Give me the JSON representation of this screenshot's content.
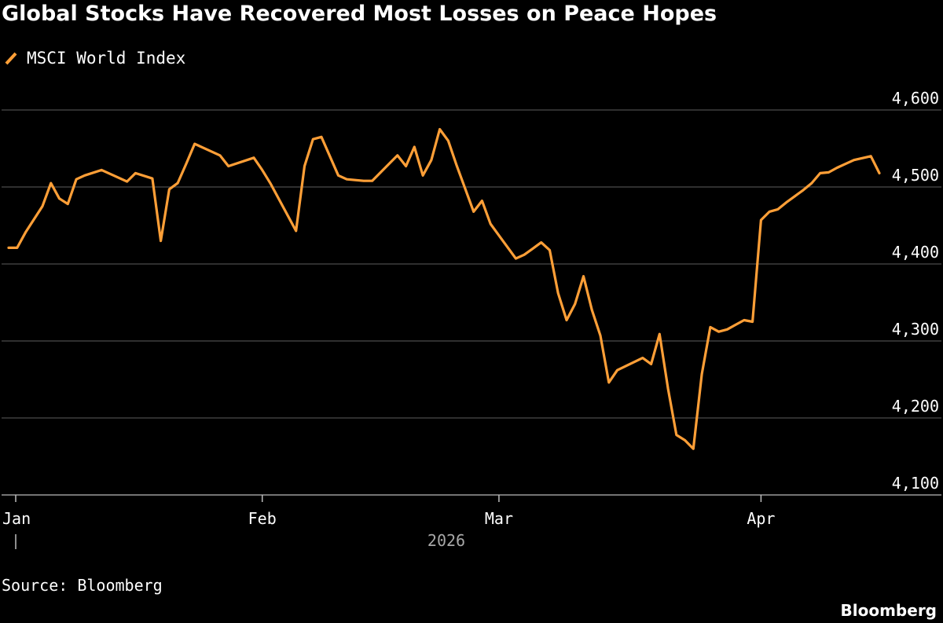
{
  "colors": {
    "background": "#000000",
    "line": "#ff9f37",
    "grid": "#5e5e5e",
    "text": "#ffffff",
    "muted": "#a8a8a8"
  },
  "chart_data": {
    "type": "line",
    "title": "Global Stocks Have Recovered Most Losses on Peace Hopes",
    "legend": [
      "MSCI World Index"
    ],
    "legend_position": "top-left",
    "xlabel": "",
    "ylabel": "",
    "x_ticks": [
      "Jan",
      "Feb",
      "Mar",
      "Apr"
    ],
    "x_year_label": "2026",
    "x_tick_days": [
      1,
      31,
      59,
      90
    ],
    "xlim": [
      1,
      104
    ],
    "y_ticks": [
      "4,600",
      "4,500",
      "4,400",
      "4,300",
      "4,200",
      "4,100"
    ],
    "y_tick_values": [
      4600,
      4500,
      4400,
      4300,
      4200,
      4100
    ],
    "ylim": [
      4100,
      4600
    ],
    "grid": true,
    "series": [
      {
        "name": "MSCI World Index",
        "x": [
          1,
          2,
          3,
          5,
          6,
          7,
          8,
          9,
          10,
          12,
          15,
          16,
          18,
          19,
          20,
          21,
          22,
          23,
          26,
          27,
          30,
          31,
          32,
          35,
          36,
          37,
          38,
          40,
          41,
          42,
          43,
          44,
          47,
          48,
          49,
          50,
          51,
          52,
          53,
          54,
          56,
          57,
          58,
          61,
          62,
          63,
          64,
          65,
          66,
          67,
          68,
          69,
          70,
          71,
          72,
          73,
          76,
          77,
          78,
          79,
          80,
          81,
          82,
          83,
          84,
          85,
          86,
          87,
          88,
          89,
          90,
          91,
          92,
          93,
          94,
          95,
          96,
          97,
          98,
          99,
          100,
          101,
          103,
          104
        ],
        "values": [
          4421,
          4421,
          4441,
          4475,
          4505,
          4485,
          4478,
          4510,
          4515,
          4522,
          4507,
          4518,
          4511,
          4430,
          4497,
          4505,
          4530,
          4556,
          4541,
          4527,
          4538,
          4522,
          4504,
          4443,
          4527,
          4562,
          4565,
          4515,
          4510,
          4509,
          4508,
          4508,
          4541,
          4527,
          4552,
          4515,
          4535,
          4575,
          4560,
          4528,
          4468,
          4482,
          4452,
          4407,
          4412,
          4420,
          4428,
          4418,
          4362,
          4327,
          4348,
          4384,
          4340,
          4307,
          4246,
          4262,
          4278,
          4270,
          4309,
          4238,
          4178,
          4171,
          4160,
          4257,
          4318,
          4312,
          4315,
          4321,
          4327,
          4325,
          4457,
          4468,
          4471,
          4480,
          4488,
          4496,
          4505,
          4518,
          4519,
          4525,
          4530,
          4535,
          4540,
          4518
        ]
      }
    ]
  },
  "source": "Source: Bloomberg",
  "brand": "Bloomberg"
}
